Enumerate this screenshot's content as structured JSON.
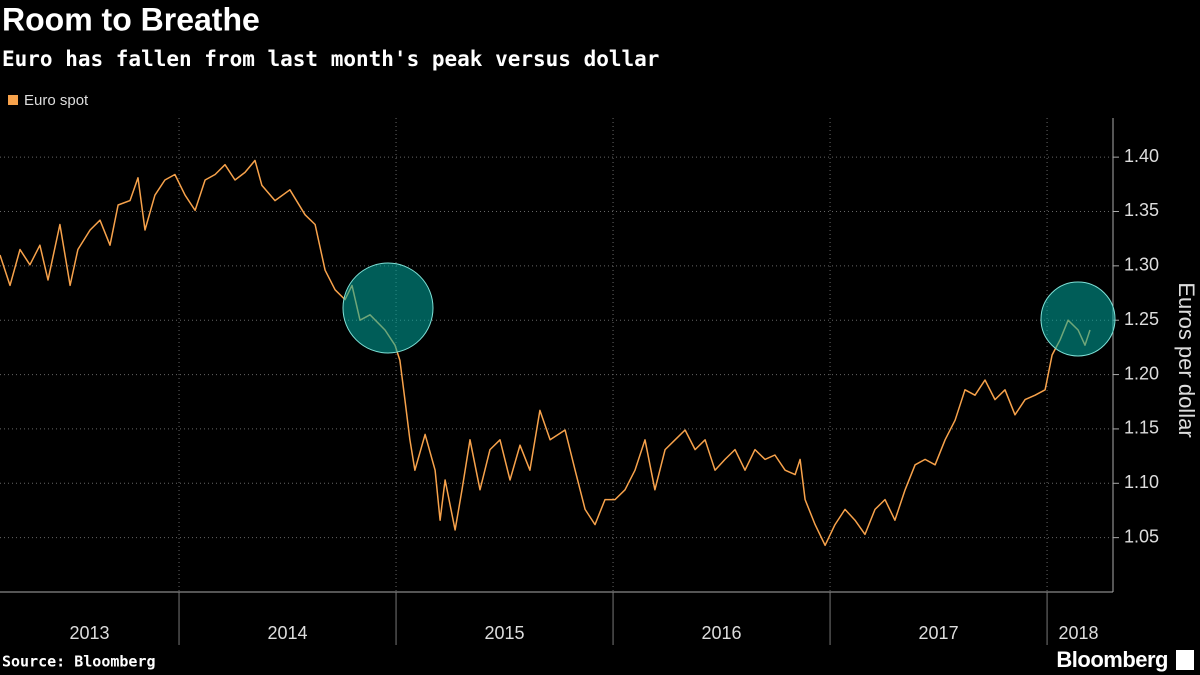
{
  "chart_data": {
    "type": "line",
    "title": "Room to Breathe",
    "subtitle": "Euro has fallen from last month's peak versus dollar",
    "y_label": "Euros per dollar",
    "source": "Source: Bloomberg",
    "brand": "Bloomberg",
    "legend": "top-left",
    "grid": true,
    "xlim": [
      2013.175,
      2018.29
    ],
    "xticks": [
      2013,
      2014,
      2015,
      2016,
      2017,
      2018
    ],
    "ylim": [
      1.0,
      1.436
    ],
    "yticks": [
      {
        "value": 1.05,
        "label": "1.05"
      },
      {
        "value": 1.1,
        "label": "1.10"
      },
      {
        "value": 1.15,
        "label": "1.15"
      },
      {
        "value": 1.2,
        "label": "1.20"
      },
      {
        "value": 1.25,
        "label": "1.25"
      },
      {
        "value": 1.3,
        "label": "1.30"
      },
      {
        "value": 1.35,
        "label": "1.35"
      },
      {
        "value": 1.4,
        "label": "1.40"
      }
    ],
    "x": [
      2013.175,
      2013.221,
      2013.267,
      2013.313,
      2013.359,
      2013.396,
      2013.451,
      2013.498,
      2013.534,
      2013.59,
      2013.636,
      2013.682,
      2013.719,
      2013.774,
      2013.811,
      2013.843,
      2013.889,
      2013.935,
      2013.981,
      2014.028,
      2014.074,
      2014.12,
      2014.166,
      2014.212,
      2014.258,
      2014.304,
      2014.35,
      2014.382,
      2014.442,
      2014.511,
      2014.581,
      2014.627,
      2014.673,
      2014.719,
      2014.765,
      2014.797,
      2014.834,
      2014.88,
      2014.949,
      2014.995,
      2015.018,
      2015.041,
      2015.064,
      2015.087,
      2015.134,
      2015.18,
      2015.203,
      2015.226,
      2015.272,
      2015.304,
      2015.341,
      2015.387,
      2015.433,
      2015.479,
      2015.525,
      2015.571,
      2015.617,
      2015.663,
      2015.71,
      2015.779,
      2015.825,
      2015.871,
      2015.917,
      2015.963,
      2016.009,
      2016.055,
      2016.101,
      2016.147,
      2016.193,
      2016.24,
      2016.286,
      2016.332,
      2016.378,
      2016.424,
      2016.47,
      2016.516,
      2016.562,
      2016.608,
      2016.654,
      2016.7,
      2016.746,
      2016.793,
      2016.839,
      2016.862,
      2016.885,
      2016.931,
      2016.977,
      2017.023,
      2017.069,
      2017.115,
      2017.161,
      2017.207,
      2017.253,
      2017.299,
      2017.346,
      2017.392,
      2017.438,
      2017.484,
      2017.53,
      2017.576,
      2017.622,
      2017.668,
      2017.714,
      2017.76,
      2017.806,
      2017.852,
      2017.899,
      2017.945,
      2017.991,
      2018.023,
      2018.06,
      2018.097,
      2018.143,
      2018.175,
      2018.198
    ],
    "series": [
      {
        "name": "Euro spot",
        "color": "#f7a24b",
        "values": [
          1.31,
          1.282,
          1.315,
          1.301,
          1.319,
          1.287,
          1.338,
          1.282,
          1.315,
          1.333,
          1.342,
          1.319,
          1.356,
          1.36,
          1.381,
          1.333,
          1.365,
          1.379,
          1.384,
          1.365,
          1.351,
          1.379,
          1.384,
          1.393,
          1.379,
          1.386,
          1.397,
          1.374,
          1.36,
          1.37,
          1.347,
          1.338,
          1.296,
          1.278,
          1.269,
          1.282,
          1.25,
          1.255,
          1.241,
          1.227,
          1.213,
          1.177,
          1.14,
          1.112,
          1.145,
          1.112,
          1.066,
          1.103,
          1.057,
          1.094,
          1.14,
          1.094,
          1.131,
          1.14,
          1.103,
          1.135,
          1.112,
          1.167,
          1.14,
          1.149,
          1.112,
          1.076,
          1.062,
          1.085,
          1.085,
          1.094,
          1.112,
          1.14,
          1.094,
          1.131,
          1.14,
          1.149,
          1.131,
          1.14,
          1.112,
          1.122,
          1.131,
          1.112,
          1.131,
          1.122,
          1.126,
          1.112,
          1.108,
          1.122,
          1.085,
          1.062,
          1.043,
          1.062,
          1.076,
          1.066,
          1.053,
          1.076,
          1.085,
          1.066,
          1.094,
          1.117,
          1.122,
          1.117,
          1.14,
          1.158,
          1.186,
          1.181,
          1.195,
          1.177,
          1.186,
          1.163,
          1.177,
          1.181,
          1.186,
          1.218,
          1.232,
          1.25,
          1.241,
          1.227,
          1.241
        ]
      }
    ]
  }
}
